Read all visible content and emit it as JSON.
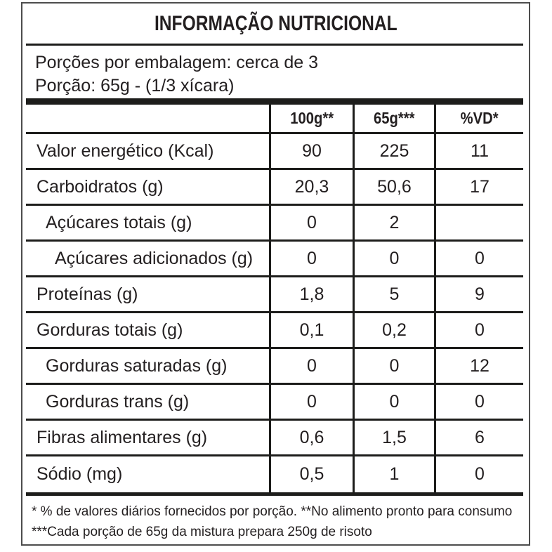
{
  "title": "INFORMAÇÃO NUTRICIONAL",
  "serving_info": {
    "servings_per_package": "Porções por embalagem: cerca de 3",
    "serving_size": "Porção: 65g - (1/3 xícara)"
  },
  "table": {
    "columns": [
      "100g**",
      "65g***",
      "%VD*"
    ],
    "rows": [
      {
        "label": "Valor energético (Kcal)",
        "indent": 0,
        "per_100g": "90",
        "per_65g": "225",
        "pct_vd": "11"
      },
      {
        "label": "Carboidratos (g)",
        "indent": 0,
        "per_100g": "20,3",
        "per_65g": "50,6",
        "pct_vd": "17"
      },
      {
        "label": "Açúcares totais (g)",
        "indent": 1,
        "per_100g": "0",
        "per_65g": "2",
        "pct_vd": ""
      },
      {
        "label": "Açúcares adicionados (g)",
        "indent": 2,
        "per_100g": "0",
        "per_65g": "0",
        "pct_vd": "0"
      },
      {
        "label": "Proteínas (g)",
        "indent": 0,
        "per_100g": "1,8",
        "per_65g": "5",
        "pct_vd": "9"
      },
      {
        "label": "Gorduras totais (g)",
        "indent": 0,
        "per_100g": "0,1",
        "per_65g": "0,2",
        "pct_vd": "0"
      },
      {
        "label": "Gorduras saturadas (g)",
        "indent": 1,
        "per_100g": "0",
        "per_65g": "0",
        "pct_vd": "12"
      },
      {
        "label": "Gorduras trans (g)",
        "indent": 1,
        "per_100g": "0",
        "per_65g": "0",
        "pct_vd": "0"
      },
      {
        "label": "Fibras alimentares (g)",
        "indent": 0,
        "per_100g": "0,6",
        "per_65g": "1,5",
        "pct_vd": "6"
      },
      {
        "label": "Sódio (mg)",
        "indent": 0,
        "per_100g": "0,5",
        "per_65g": "1",
        "pct_vd": "0"
      }
    ]
  },
  "footnotes": {
    "line1": "* % de valores diários fornecidos por porção. **No alimento pronto para consumo",
    "line2": "***Cada porção de 65g da mistura prepara 250g de risoto"
  },
  "colors": {
    "text": "#231f20",
    "line": "#1d1d1b",
    "outer_border": "#4d4d4d",
    "background": "#ffffff"
  }
}
